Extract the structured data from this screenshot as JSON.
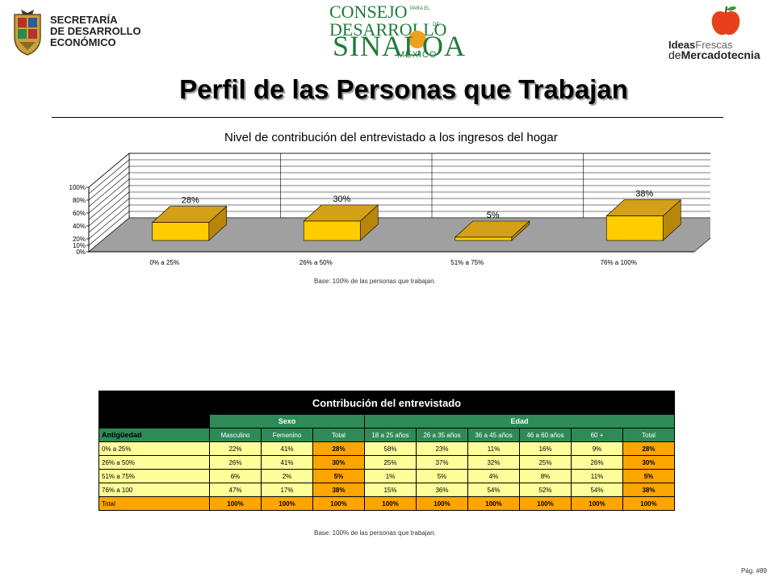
{
  "header": {
    "left_logo": {
      "lines": [
        "SECRETARÍA",
        "DE DESARROLLO",
        "ECONÓMICO"
      ]
    },
    "center_logo": {
      "line1": "CONSEJO",
      "line2": "DESARROLLO",
      "line3": "SINALOA",
      "line4": "MÉXICO",
      "small1": "PARA EL",
      "small2": "DE"
    },
    "right_logo": {
      "w1a": "Ideas",
      "w1b": "Frescas",
      "w2a": "de",
      "w2b": "Mercadotecnia"
    }
  },
  "page_title": "Perfil de las Personas que Trabajan",
  "chart_data": {
    "type": "bar",
    "title": "Nivel de contribución del entrevistado a los ingresos del hogar",
    "categories": [
      "0% a 25%",
      "26% a 50%",
      "51% a 75%",
      "76% a 100%"
    ],
    "values": [
      28,
      30,
      5,
      38
    ],
    "value_labels": [
      "28%",
      "30%",
      "5%",
      "38%"
    ],
    "ylim": [
      0,
      100
    ],
    "yticks": [
      "0%",
      "10%",
      "20%",
      "40%",
      "60%",
      "80%",
      "100%"
    ],
    "grid": true,
    "three_d": true,
    "bar_color": "#FFCC00",
    "floor_color": "#A0A0A0"
  },
  "chart_base": "Base: 100% de las personas que trabajan.",
  "table": {
    "title": "Contribución del entrevistado",
    "groups": {
      "sexo": "Sexo",
      "edad": "Edad"
    },
    "row_header": "Antigüedad",
    "columns": [
      "Masculino",
      "Femenino",
      "Total",
      "18 a 25 años",
      "26 a 35 años",
      "36 a 45 años",
      "46 a 60 años",
      "60 +",
      "Total"
    ],
    "rows": [
      {
        "label": "0% a 25%",
        "cells": [
          "22%",
          "41%",
          "28%",
          "58%",
          "23%",
          "11%",
          "16%",
          "9%",
          "28%"
        ]
      },
      {
        "label": "26% a 50%",
        "cells": [
          "26%",
          "41%",
          "30%",
          "25%",
          "37%",
          "32%",
          "25%",
          "26%",
          "30%"
        ]
      },
      {
        "label": "51% a 75%",
        "cells": [
          "6%",
          "2%",
          "5%",
          "1%",
          "5%",
          "4%",
          "8%",
          "11%",
          "5%"
        ]
      },
      {
        "label": "76% a 100",
        "cells": [
          "47%",
          "17%",
          "38%",
          "15%",
          "36%",
          "54%",
          "52%",
          "54%",
          "38%"
        ]
      },
      {
        "label": "Total",
        "cells": [
          "100%",
          "100%",
          "100%",
          "100%",
          "100%",
          "100%",
          "100%",
          "100%",
          "100%"
        ]
      }
    ]
  },
  "table_base": "Base: 100% de las personas que trabajan.",
  "page_number": "Pág. #89"
}
